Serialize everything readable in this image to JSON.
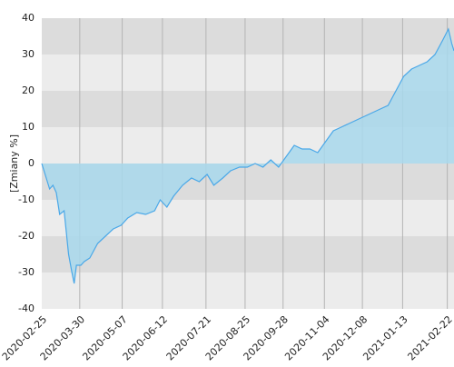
{
  "chart_data": {
    "type": "area",
    "y_label": "[Zmiany %]",
    "x": [
      "2020-02-25",
      "2020-02-28",
      "2020-03-03",
      "2020-03-06",
      "2020-03-09",
      "2020-03-12",
      "2020-03-16",
      "2020-03-18",
      "2020-03-20",
      "2020-03-23",
      "2020-03-25",
      "2020-03-27",
      "2020-03-31",
      "2020-04-03",
      "2020-04-08",
      "2020-04-15",
      "2020-04-22",
      "2020-04-29",
      "2020-05-06",
      "2020-05-12",
      "2020-05-20",
      "2020-05-28",
      "2020-06-05",
      "2020-06-10",
      "2020-06-16",
      "2020-06-22",
      "2020-06-30",
      "2020-07-08",
      "2020-07-15",
      "2020-07-22",
      "2020-07-28",
      "2020-08-05",
      "2020-08-12",
      "2020-08-20",
      "2020-08-27",
      "2020-09-03",
      "2020-09-10",
      "2020-09-17",
      "2020-09-24",
      "2020-10-01",
      "2020-10-08",
      "2020-10-15",
      "2020-10-22",
      "2020-10-29",
      "2020-11-05",
      "2020-11-12",
      "2020-11-19",
      "2020-11-26",
      "2020-12-03",
      "2020-12-10",
      "2020-12-17",
      "2020-12-24",
      "2020-12-31",
      "2021-01-07",
      "2021-01-14",
      "2021-01-21",
      "2021-01-28",
      "2021-02-04",
      "2021-02-11",
      "2021-02-18",
      "2021-02-23",
      "2021-02-26",
      "2021-02-28"
    ],
    "series": [
      {
        "color": "#4aa8e8",
        "fill": "#a8d8ec",
        "values": [
          0,
          -3,
          -7,
          -6,
          -8,
          -14,
          -13,
          -19,
          -25,
          -30,
          -33,
          -28,
          -28,
          -27,
          -26,
          -22,
          -20,
          -18,
          -17,
          -15,
          -13.5,
          -14,
          -13,
          -10,
          -12,
          -9,
          -6,
          -4,
          -5,
          -3,
          -6,
          -4,
          -2,
          -1,
          -1,
          0,
          -1,
          1,
          -1,
          2,
          5,
          4,
          4,
          3,
          6,
          9,
          10,
          11,
          12,
          13,
          14,
          15,
          16,
          20,
          24,
          26,
          27,
          28,
          30,
          34,
          37,
          33,
          31
        ]
      }
    ],
    "xlim": [
      "2020-02-25",
      "2021-02-28"
    ],
    "xticks": [
      "2020-02-25",
      "2020-03-30",
      "2020-05-07",
      "2020-06-12",
      "2020-07-21",
      "2020-08-25",
      "2020-09-28",
      "2020-11-04",
      "2020-12-08",
      "2021-01-13",
      "2021-02-22"
    ],
    "ylim": [
      -40,
      40
    ],
    "yticks": [
      -40,
      -30,
      -20,
      -10,
      0,
      10,
      20,
      30,
      40
    ],
    "band_colors": [
      "#ececec",
      "#dcdcdc"
    ],
    "grid_color": "#b4b4b4"
  }
}
